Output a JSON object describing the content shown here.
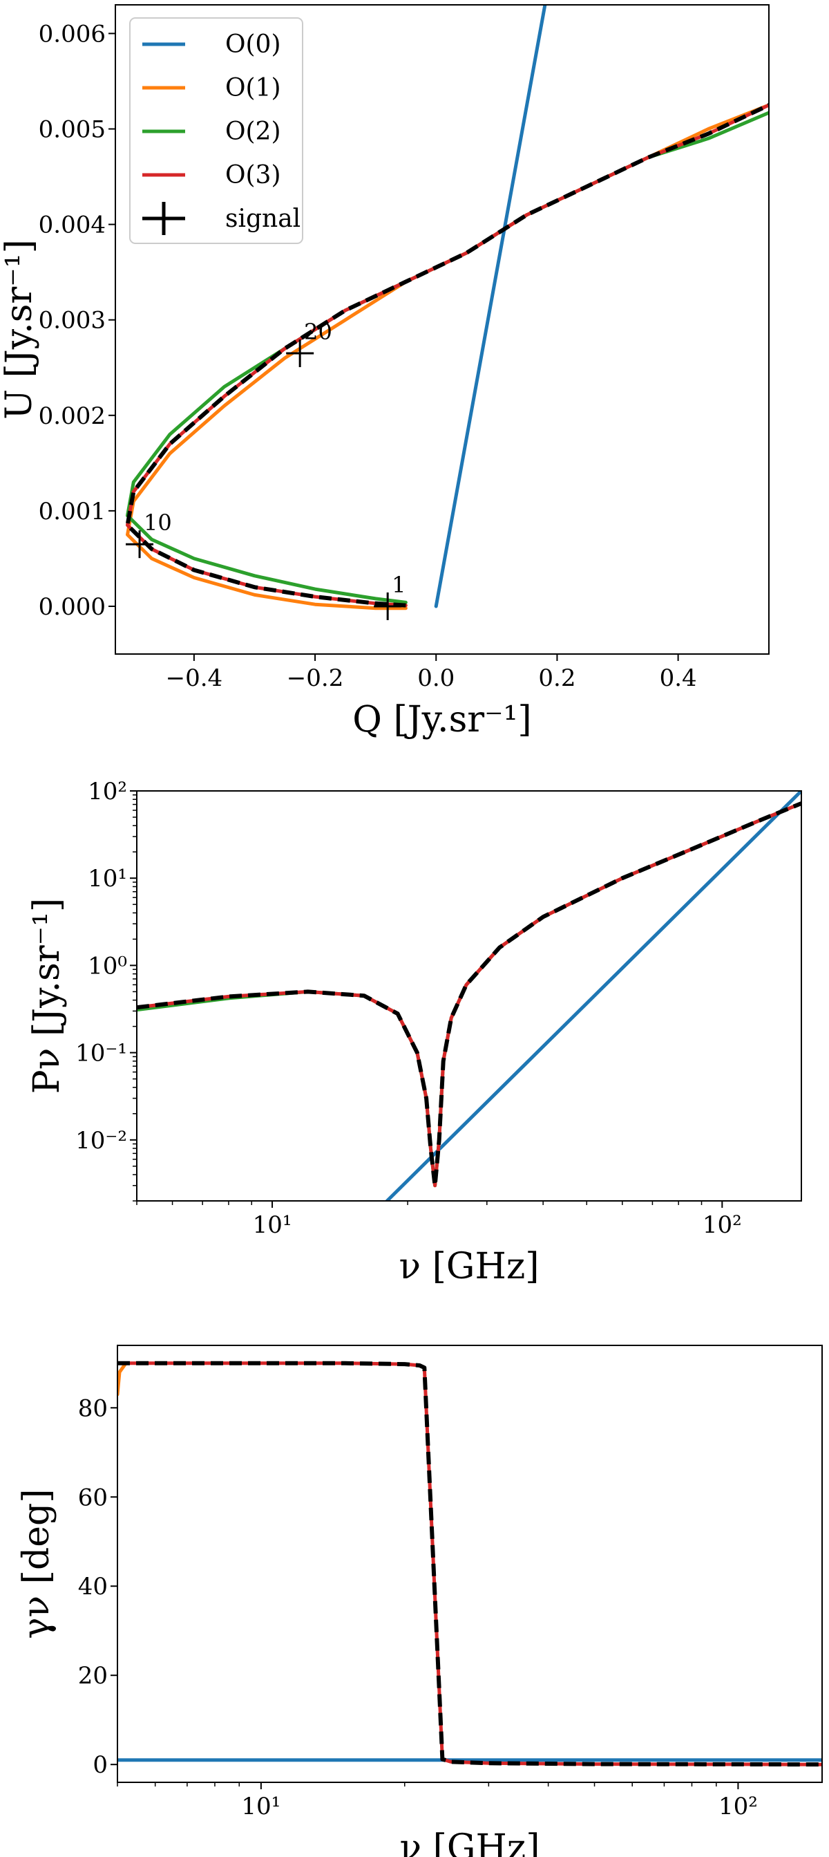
{
  "legend": {
    "entries": [
      {
        "label": "O(0)",
        "color": "#1f77b4",
        "kind": "line"
      },
      {
        "label": "O(1)",
        "color": "#ff7f0e",
        "kind": "line"
      },
      {
        "label": "O(2)",
        "color": "#2ca02c",
        "kind": "line"
      },
      {
        "label": "O(3)",
        "color": "#d62728",
        "kind": "line"
      },
      {
        "label": "signal",
        "color": "#000000",
        "kind": "cross"
      }
    ],
    "placement": "top-left"
  },
  "chart_data": [
    {
      "type": "line",
      "xlabel": "Q [Jy.sr⁻¹]",
      "ylabel": "U [Jy.sr⁻¹]",
      "xlim": [
        -0.53,
        0.55
      ],
      "ylim": [
        -0.0005,
        0.0063
      ],
      "xticks": [
        -0.4,
        -0.2,
        0.0,
        0.2,
        0.4
      ],
      "xtick_labels": [
        "−0.4",
        "−0.2",
        "0.0",
        "0.2",
        "0.4"
      ],
      "yticks": [
        0.0,
        0.001,
        0.002,
        0.003,
        0.004,
        0.005,
        0.006
      ],
      "ytick_labels": [
        "0.000",
        "0.001",
        "0.002",
        "0.003",
        "0.004",
        "0.005",
        "0.006"
      ],
      "grid": false,
      "series": [
        {
          "name": "O(0)",
          "color": "#1f77b4",
          "style": "solid",
          "x": [
            0.0,
            0.18
          ],
          "y": [
            0.0,
            0.0063
          ]
        },
        {
          "name": "O(1)",
          "color": "#ff7f0e",
          "style": "solid",
          "x": [
            -0.05,
            -0.1,
            -0.2,
            -0.3,
            -0.4,
            -0.47,
            -0.51,
            -0.5,
            -0.44,
            -0.35,
            -0.25,
            -0.15,
            -0.05,
            0.05,
            0.15,
            0.25,
            0.35,
            0.45,
            0.55
          ],
          "y": [
            -2e-05,
            -2e-05,
            2e-05,
            0.00012,
            0.0003,
            0.0005,
            0.00075,
            0.0011,
            0.0016,
            0.0021,
            0.0026,
            0.003,
            0.0034,
            0.0037,
            0.0041,
            0.0044,
            0.0047,
            0.005,
            0.00525
          ]
        },
        {
          "name": "O(2)",
          "color": "#2ca02c",
          "style": "solid",
          "x": [
            -0.05,
            -0.1,
            -0.2,
            -0.3,
            -0.4,
            -0.47,
            -0.51,
            -0.5,
            -0.44,
            -0.35,
            -0.25,
            -0.15,
            -0.05,
            0.05,
            0.15,
            0.25,
            0.35,
            0.45,
            0.55
          ],
          "y": [
            4e-05,
            8e-05,
            0.00018,
            0.00032,
            0.0005,
            0.0007,
            0.00095,
            0.0013,
            0.0018,
            0.0023,
            0.0027,
            0.0031,
            0.0034,
            0.0037,
            0.0041,
            0.0044,
            0.0047,
            0.0049,
            0.00517
          ]
        },
        {
          "name": "O(3)",
          "color": "#d62728",
          "style": "solid",
          "x": [
            -0.05,
            -0.1,
            -0.2,
            -0.3,
            -0.4,
            -0.47,
            -0.51,
            -0.5,
            -0.44,
            -0.35,
            -0.25,
            -0.15,
            -0.05,
            0.05,
            0.15,
            0.25,
            0.35,
            0.45,
            0.55
          ],
          "y": [
            1e-05,
            3e-05,
            0.0001,
            0.0002,
            0.00038,
            0.0006,
            0.00085,
            0.0012,
            0.0017,
            0.0022,
            0.0027,
            0.0031,
            0.0034,
            0.0037,
            0.0041,
            0.0044,
            0.0047,
            0.00495,
            0.00525
          ]
        },
        {
          "name": "signal",
          "color": "#000000",
          "style": "dashed",
          "x": [
            -0.05,
            -0.1,
            -0.2,
            -0.3,
            -0.4,
            -0.47,
            -0.51,
            -0.5,
            -0.44,
            -0.35,
            -0.25,
            -0.15,
            -0.05,
            0.05,
            0.15,
            0.25,
            0.35,
            0.45,
            0.55
          ],
          "y": [
            1e-05,
            3e-05,
            0.0001,
            0.0002,
            0.00038,
            0.0006,
            0.00085,
            0.0012,
            0.0017,
            0.0022,
            0.0027,
            0.0031,
            0.0034,
            0.0037,
            0.0041,
            0.0044,
            0.0047,
            0.00495,
            0.00525
          ]
        }
      ],
      "markers": [
        {
          "label": "1",
          "x": -0.08,
          "y": 0.0
        },
        {
          "label": "10",
          "x": -0.49,
          "y": 0.00065
        },
        {
          "label": "20",
          "x": -0.225,
          "y": 0.00265
        }
      ]
    },
    {
      "type": "line",
      "xlabel": "ν [GHz]",
      "ylabel": "Pν [Jy.sr⁻¹]",
      "xscale": "log",
      "yscale": "log",
      "xlim": [
        5,
        150
      ],
      "ylim": [
        0.002,
        100
      ],
      "xticks": [
        10,
        100
      ],
      "xtick_labels": [
        "10¹",
        "10²"
      ],
      "yticks": [
        0.01,
        0.1,
        1,
        10,
        100
      ],
      "ytick_labels": [
        "10⁻²",
        "10⁻¹",
        "10⁰",
        "10¹",
        "10²"
      ],
      "grid": false,
      "series": [
        {
          "name": "O(0)",
          "color": "#1f77b4",
          "style": "solid",
          "x": [
            18,
            150
          ],
          "y": [
            0.002,
            100
          ]
        },
        {
          "name": "O(2)",
          "color": "#2ca02c",
          "style": "solid",
          "x": [
            5,
            8,
            12,
            16,
            19,
            21,
            22,
            22.5,
            23,
            23.5,
            24,
            25,
            27,
            32,
            40,
            60,
            90,
            120,
            150
          ],
          "y": [
            0.31,
            0.42,
            0.5,
            0.45,
            0.28,
            0.1,
            0.03,
            0.008,
            0.003,
            0.01,
            0.08,
            0.25,
            0.6,
            1.6,
            3.6,
            10,
            24,
            45,
            72
          ]
        },
        {
          "name": "O(3)",
          "color": "#d62728",
          "style": "solid",
          "x": [
            5,
            8,
            12,
            16,
            19,
            21,
            22,
            22.5,
            23,
            23.5,
            24,
            25,
            27,
            32,
            40,
            60,
            90,
            120,
            150
          ],
          "y": [
            0.33,
            0.44,
            0.5,
            0.45,
            0.28,
            0.1,
            0.03,
            0.008,
            0.003,
            0.01,
            0.08,
            0.25,
            0.6,
            1.6,
            3.6,
            10,
            24,
            45,
            72
          ]
        },
        {
          "name": "signal",
          "color": "#000000",
          "style": "dashed",
          "x": [
            5,
            8,
            12,
            16,
            19,
            21,
            22,
            22.5,
            23,
            23.5,
            24,
            25,
            27,
            32,
            40,
            60,
            90,
            120,
            150
          ],
          "y": [
            0.33,
            0.44,
            0.5,
            0.45,
            0.28,
            0.1,
            0.03,
            0.008,
            0.003,
            0.01,
            0.08,
            0.25,
            0.6,
            1.6,
            3.6,
            10,
            24,
            45,
            72
          ]
        }
      ]
    },
    {
      "type": "line",
      "xlabel": "ν [GHz]",
      "ylabel": "γν [deg]",
      "xscale": "log",
      "xlim": [
        5,
        150
      ],
      "ylim": [
        -4,
        94
      ],
      "xticks": [
        10,
        100
      ],
      "xtick_labels": [
        "10¹",
        "10²"
      ],
      "yticks": [
        0,
        20,
        40,
        60,
        80
      ],
      "ytick_labels": [
        "0",
        "20",
        "40",
        "60",
        "80"
      ],
      "grid": false,
      "series": [
        {
          "name": "O(0)",
          "color": "#1f77b4",
          "style": "solid",
          "x": [
            5,
            150
          ],
          "y": [
            1,
            1
          ]
        },
        {
          "name": "O(1)",
          "color": "#ff7f0e",
          "style": "solid",
          "x": [
            5,
            5.05,
            5.2
          ],
          "y": [
            83,
            88,
            89.9
          ]
        },
        {
          "name": "O(3)",
          "color": "#d62728",
          "style": "solid",
          "x": [
            5,
            10,
            15,
            20,
            21.5,
            22,
            24,
            25,
            30,
            50,
            100,
            150
          ],
          "y": [
            90,
            90,
            90,
            89.8,
            89.5,
            89,
            1.2,
            0.6,
            0.3,
            0.1,
            0.05,
            0.0
          ]
        },
        {
          "name": "signal",
          "color": "#000000",
          "style": "dashed",
          "x": [
            5,
            10,
            15,
            20,
            21.5,
            22,
            24,
            25,
            30,
            50,
            100,
            150
          ],
          "y": [
            90,
            90,
            90,
            89.8,
            89.5,
            89,
            1.2,
            0.6,
            0.3,
            0.1,
            0.05,
            0.0
          ]
        }
      ]
    }
  ]
}
